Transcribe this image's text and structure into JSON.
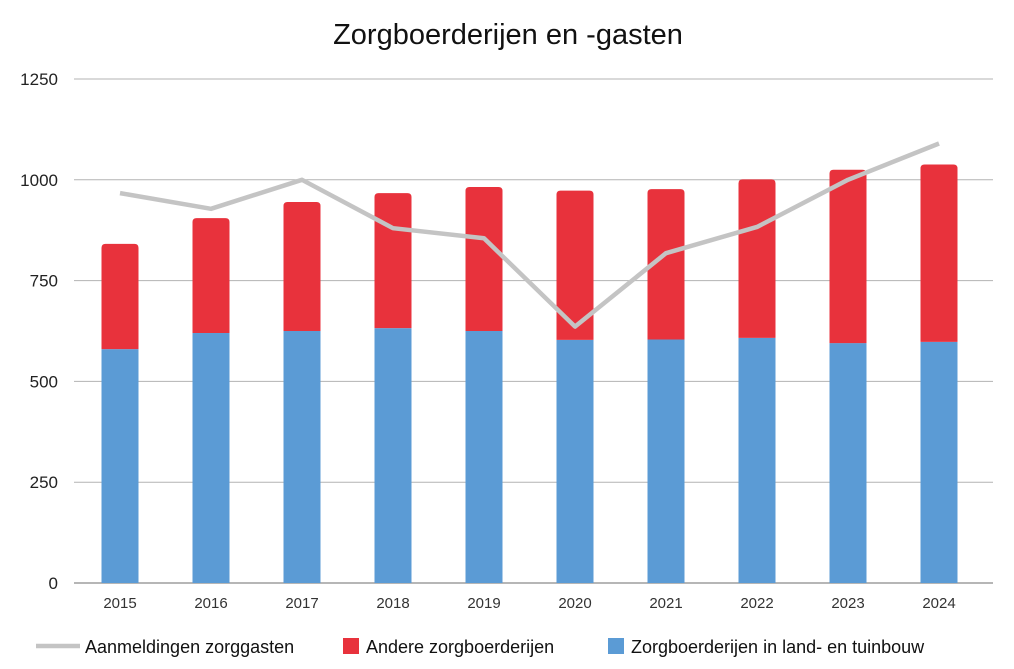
{
  "chart_data": {
    "type": "bar",
    "stacked": true,
    "title": "Zorgboerderijen en -gasten",
    "xlabel": "",
    "ylabel": "",
    "categories": [
      "2015",
      "2016",
      "2017",
      "2018",
      "2019",
      "2020",
      "2021",
      "2022",
      "2023",
      "2024"
    ],
    "yticks": [
      "0",
      "250",
      "500",
      "750",
      "1000",
      "1250"
    ],
    "ylim": [
      0,
      1250
    ],
    "grid": true,
    "legend_position": "bottom",
    "series": [
      {
        "name": "Zorgboerderijen in land- en tuinbouw",
        "type": "bar",
        "color": "#5b9bd5",
        "values": [
          580,
          620,
          625,
          632,
          625,
          603,
          604,
          608,
          595,
          598
        ]
      },
      {
        "name": "Andere zorgboerderijen",
        "type": "bar",
        "color": "#e8323c",
        "values": [
          261,
          285,
          320,
          335,
          357,
          370,
          373,
          393,
          430,
          440
        ]
      },
      {
        "name": "Aanmeldingen zorggasten",
        "type": "line",
        "color": "#c4c4c4",
        "values": [
          967,
          928,
          1000,
          880,
          855,
          636,
          818,
          883,
          1000,
          1090
        ]
      }
    ],
    "legend_order": [
      "Aanmeldingen zorggasten",
      "Andere zorgboerderijen",
      "Zorgboerderijen in land- en tuinbouw"
    ]
  }
}
